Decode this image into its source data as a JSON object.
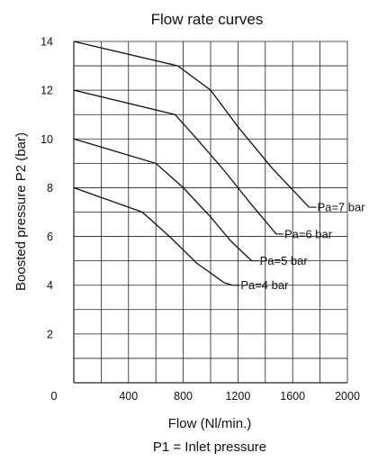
{
  "chart_data": {
    "type": "line",
    "title": "Flow rate curves",
    "xlabel": "Flow (Nl/min.)",
    "ylabel": "Boosted pressure P2 (bar)",
    "footnote": "P1 = Inlet pressure",
    "xlim": [
      0,
      2000
    ],
    "ylim": [
      0,
      14
    ],
    "x_ticks": [
      0,
      400,
      800,
      1200,
      1600,
      2000
    ],
    "y_ticks": [
      2,
      4,
      6,
      8,
      10,
      12,
      14
    ],
    "grid": true,
    "series_color": "#111111",
    "series": [
      {
        "name": "Pa=7 bar",
        "points": [
          [
            0,
            14
          ],
          [
            760,
            13
          ],
          [
            1000,
            12
          ],
          [
            1200,
            10.5
          ],
          [
            1450,
            8.8
          ],
          [
            1720,
            7.2
          ]
        ]
      },
      {
        "name": "Pa=6 bar",
        "points": [
          [
            0,
            12
          ],
          [
            740,
            11
          ],
          [
            900,
            10
          ],
          [
            1100,
            8.7
          ],
          [
            1300,
            7.3
          ],
          [
            1480,
            6.1
          ]
        ]
      },
      {
        "name": "Pa=5 bar",
        "points": [
          [
            0,
            10
          ],
          [
            600,
            9
          ],
          [
            800,
            8
          ],
          [
            1000,
            6.8
          ],
          [
            1150,
            5.8
          ],
          [
            1300,
            5.0
          ]
        ]
      },
      {
        "name": "Pa=4 bar",
        "points": [
          [
            0,
            8
          ],
          [
            500,
            7
          ],
          [
            700,
            6
          ],
          [
            900,
            4.9
          ],
          [
            1100,
            4.1
          ],
          [
            1160,
            4.0
          ]
        ]
      }
    ]
  }
}
